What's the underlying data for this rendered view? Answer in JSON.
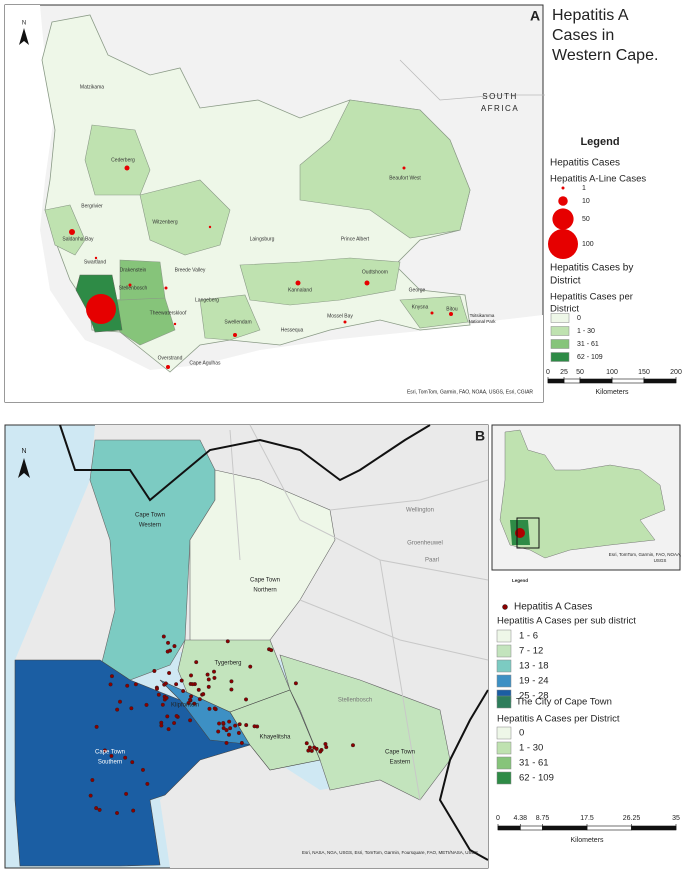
{
  "panel_a": {
    "label": "A",
    "title": [
      "Hepatitis A",
      "Cases in",
      "Western Cape."
    ],
    "legend_title": "Legend",
    "cases_heading": "Hepatitis Cases",
    "cases_sub": "Hepatitis A-Line Cases",
    "sizes": [
      1,
      10,
      50,
      100
    ],
    "size_color": "#e60000",
    "district_heading": [
      "Hepatitis Cases by",
      "District"
    ],
    "district_sub": [
      "Hepatitis Cases per",
      "District"
    ],
    "classes": [
      {
        "label": "0",
        "color": "#eef7e8"
      },
      {
        "label": "1 - 30",
        "color": "#bfe2b0"
      },
      {
        "label": "31 - 61",
        "color": "#86c47a"
      },
      {
        "label": "62 - 109",
        "color": "#2e8b46"
      }
    ],
    "scale": [
      0,
      25,
      50,
      100,
      150,
      200
    ],
    "scale_unit": "Kilometers",
    "attribution": "Esri, TomTom, Garmin, FAO, NOAA, USGS, Esri, CGIAR",
    "north": "N",
    "places": [
      [
        "Matzikama"
      ],
      [
        "Cederberg"
      ],
      [
        "Bergrivier"
      ],
      [
        "Saldanha Bay"
      ],
      [
        "Swartland"
      ],
      [
        "Witzenberg"
      ],
      [
        "Drakenstein"
      ],
      [
        "Stellenbosch"
      ],
      [
        "Breede Valley"
      ],
      [
        "Langeberg"
      ],
      [
        "Laingsburg"
      ],
      [
        "Prince Albert"
      ],
      [
        "Beaufort West"
      ],
      [
        "Kannaland"
      ],
      [
        "Oudtshoorn"
      ],
      [
        "George"
      ],
      [
        "Mossel Bay"
      ],
      [
        "Hessequa"
      ],
      [
        "Swellendam"
      ],
      [
        "Theewaterskloof"
      ],
      [
        "Overstrand"
      ],
      [
        "Cape Agulhas"
      ],
      [
        "Knysna"
      ],
      [
        "Bitou"
      ],
      [
        "SOUTH",
        "AFRICA"
      ],
      [
        "Tsitsikamma",
        "National Park"
      ]
    ]
  },
  "panel_b": {
    "label": "B",
    "north": "N",
    "inset_legend": "Legend",
    "cases_heading": "Hepatitis A Cases",
    "cases_color": "#8b0000",
    "sub_heading": "Hepatitis A Cases per sub district",
    "sub_classes": [
      {
        "label": "1 - 6",
        "color": "#eef7e8"
      },
      {
        "label": "7 - 12",
        "color": "#c3e4bd"
      },
      {
        "label": "13 - 18",
        "color": "#7ccbc2"
      },
      {
        "label": "19 - 24",
        "color": "#3d90c4"
      },
      {
        "label": "25 - 28",
        "color": "#1b5ea3"
      }
    ],
    "city": {
      "label": "The City of Cape Town",
      "color": "#2e7d5b"
    },
    "district_heading": "Hepatitis A Cases per District",
    "classes": [
      {
        "label": "0",
        "color": "#eef7e8"
      },
      {
        "label": "1 - 30",
        "color": "#bfe2b0"
      },
      {
        "label": "31 - 61",
        "color": "#86c47a"
      },
      {
        "label": "62 - 109",
        "color": "#2e8b46"
      }
    ],
    "scale": [
      0,
      4.38,
      8.75,
      17.5,
      26.25,
      35
    ],
    "scale_unit": "Kilometers",
    "attribution": "Esri, NASA, NGA, USGS, Esri, TomTom, Garmin, Foursquare, FAO, METI/NASA, USGS",
    "inset_attribution": [
      "Esri, TomTom, Garmin, FAO, NOAA,",
      "USGS"
    ],
    "places": [
      [
        "Cape Town",
        "Western"
      ],
      [
        "Cape Town",
        "Northern"
      ],
      [
        "Tygerberg"
      ],
      [
        "Klipfontein"
      ],
      [
        "Khayelitsha"
      ],
      [
        "Cape Town",
        "Eastern"
      ],
      [
        "Cape Town",
        "Southern"
      ],
      [
        "Paarl"
      ],
      [
        "Wellington"
      ],
      [
        "Stellenbosch"
      ],
      [
        "Groenheuwel"
      ]
    ]
  }
}
